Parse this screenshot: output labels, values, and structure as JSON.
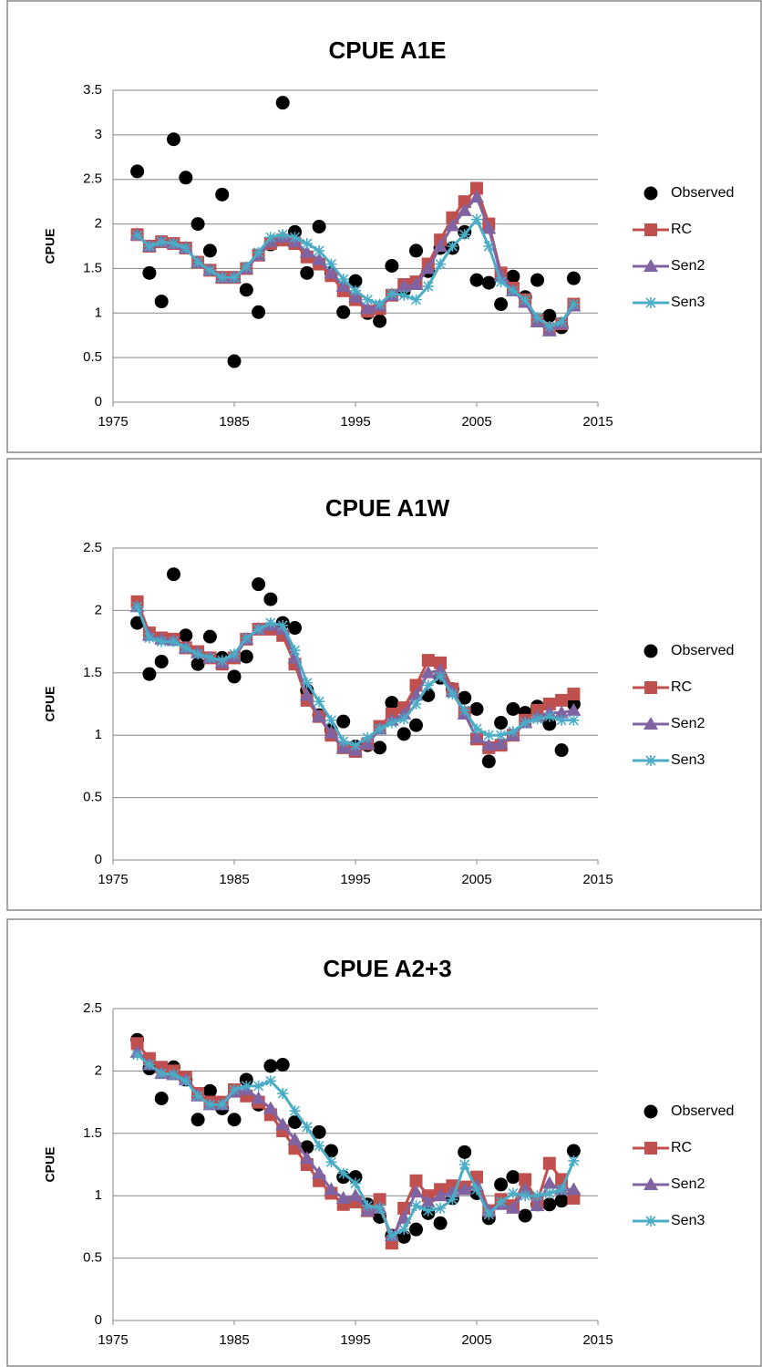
{
  "chart_data": [
    {
      "type": "line",
      "title": "CPUE A1E",
      "ylabel": "CPUE",
      "x": [
        1977,
        1978,
        1979,
        1980,
        1981,
        1982,
        1983,
        1984,
        1985,
        1986,
        1987,
        1988,
        1989,
        1990,
        1991,
        1992,
        1993,
        1994,
        1995,
        1996,
        1997,
        1998,
        1999,
        2000,
        2001,
        2002,
        2003,
        2004,
        2005,
        2006,
        2007,
        2008,
        2009,
        2010,
        2011,
        2012,
        2013
      ],
      "xlim": [
        1975,
        2015
      ],
      "xticks": [
        1975,
        1985,
        1995,
        2005,
        2015
      ],
      "ylim": [
        0,
        3.5
      ],
      "yticks": [
        0,
        0.5,
        1,
        1.5,
        2,
        2.5,
        3,
        3.5
      ],
      "grid": true,
      "legend": "right",
      "series": [
        {
          "name": "Observed",
          "color": "#000000",
          "marker": "circle",
          "line": false,
          "values": [
            2.59,
            1.45,
            1.13,
            2.95,
            2.52,
            2.0,
            1.7,
            2.33,
            0.46,
            1.26,
            1.01,
            1.77,
            3.36,
            1.91,
            1.45,
            1.97,
            1.45,
            1.01,
            1.36,
            1.0,
            0.91,
            1.53,
            1.25,
            1.7,
            1.47,
            1.73,
            1.73,
            1.91,
            1.37,
            1.34,
            1.1,
            1.41,
            1.18,
            1.37,
            0.97,
            0.84,
            1.39
          ]
        },
        {
          "name": "RC",
          "color": "#c0504d",
          "marker": "square",
          "line": true,
          "values": [
            1.88,
            1.75,
            1.8,
            1.78,
            1.73,
            1.57,
            1.48,
            1.4,
            1.4,
            1.5,
            1.65,
            1.78,
            1.82,
            1.78,
            1.63,
            1.55,
            1.42,
            1.25,
            1.15,
            1.02,
            1.05,
            1.2,
            1.32,
            1.35,
            1.55,
            1.82,
            2.07,
            2.25,
            2.4,
            2.0,
            1.45,
            1.28,
            1.15,
            0.92,
            0.82,
            0.88,
            1.1
          ]
        },
        {
          "name": "Sen2",
          "color": "#8064a2",
          "marker": "triangle",
          "line": true,
          "values": [
            1.88,
            1.75,
            1.8,
            1.78,
            1.73,
            1.57,
            1.48,
            1.4,
            1.4,
            1.5,
            1.65,
            1.8,
            1.85,
            1.8,
            1.68,
            1.6,
            1.45,
            1.3,
            1.18,
            1.05,
            1.08,
            1.2,
            1.3,
            1.32,
            1.5,
            1.75,
            1.98,
            2.15,
            2.3,
            1.95,
            1.42,
            1.25,
            1.12,
            0.9,
            0.8,
            0.88,
            1.08
          ]
        },
        {
          "name": "Sen3",
          "color": "#4bacc6",
          "marker": "asterisk",
          "line": true,
          "values": [
            1.87,
            1.75,
            1.8,
            1.78,
            1.73,
            1.57,
            1.48,
            1.4,
            1.4,
            1.52,
            1.68,
            1.85,
            1.88,
            1.85,
            1.78,
            1.7,
            1.55,
            1.38,
            1.25,
            1.15,
            1.1,
            1.22,
            1.2,
            1.15,
            1.3,
            1.55,
            1.75,
            1.88,
            2.05,
            1.75,
            1.35,
            1.25,
            1.15,
            0.95,
            0.85,
            0.9,
            1.1
          ]
        }
      ]
    },
    {
      "type": "line",
      "title": "CPUE A1W",
      "ylabel": "CPUE",
      "x": [
        1977,
        1978,
        1979,
        1980,
        1981,
        1982,
        1983,
        1984,
        1985,
        1986,
        1987,
        1988,
        1989,
        1990,
        1991,
        1992,
        1993,
        1994,
        1995,
        1996,
        1997,
        1998,
        1999,
        2000,
        2001,
        2002,
        2003,
        2004,
        2005,
        2006,
        2007,
        2008,
        2009,
        2010,
        2011,
        2012,
        2013
      ],
      "xlim": [
        1975,
        2015
      ],
      "xticks": [
        1975,
        1985,
        1995,
        2005,
        2015
      ],
      "ylim": [
        0,
        2.5
      ],
      "yticks": [
        0,
        0.5,
        1,
        1.5,
        2,
        2.5
      ],
      "grid": true,
      "legend": "right",
      "series": [
        {
          "name": "Observed",
          "color": "#000000",
          "marker": "circle",
          "line": false,
          "values": [
            1.9,
            1.49,
            1.59,
            2.29,
            1.8,
            1.57,
            1.79,
            1.62,
            1.47,
            1.63,
            2.21,
            2.09,
            1.9,
            1.86,
            1.36,
            1.16,
            1.04,
            1.11,
            0.91,
            0.92,
            0.9,
            1.26,
            1.01,
            1.08,
            1.32,
            1.46,
            1.37,
            1.3,
            1.21,
            0.79,
            1.1,
            1.21,
            1.18,
            1.23,
            1.09,
            0.88,
            1.25
          ]
        },
        {
          "name": "RC",
          "color": "#c0504d",
          "marker": "square",
          "line": true,
          "values": [
            2.07,
            1.82,
            1.78,
            1.77,
            1.7,
            1.67,
            1.62,
            1.57,
            1.62,
            1.77,
            1.85,
            1.85,
            1.8,
            1.57,
            1.28,
            1.15,
            1.0,
            0.9,
            0.87,
            0.93,
            1.07,
            1.17,
            1.22,
            1.4,
            1.6,
            1.58,
            1.37,
            1.18,
            0.97,
            0.9,
            0.92,
            1.0,
            1.12,
            1.2,
            1.25,
            1.28,
            1.33
          ]
        },
        {
          "name": "Sen2",
          "color": "#8064a2",
          "marker": "triangle",
          "line": true,
          "values": [
            2.03,
            1.8,
            1.77,
            1.76,
            1.7,
            1.66,
            1.62,
            1.58,
            1.63,
            1.77,
            1.85,
            1.88,
            1.85,
            1.62,
            1.32,
            1.15,
            1.02,
            0.9,
            0.88,
            0.93,
            1.05,
            1.12,
            1.17,
            1.32,
            1.5,
            1.52,
            1.35,
            1.17,
            0.98,
            0.92,
            0.93,
            1.0,
            1.1,
            1.15,
            1.18,
            1.18,
            1.2
          ]
        },
        {
          "name": "Sen3",
          "color": "#4bacc6",
          "marker": "asterisk",
          "line": true,
          "values": [
            2.03,
            1.78,
            1.75,
            1.75,
            1.7,
            1.65,
            1.62,
            1.6,
            1.65,
            1.78,
            1.85,
            1.9,
            1.88,
            1.68,
            1.42,
            1.27,
            1.12,
            0.95,
            0.92,
            0.98,
            1.05,
            1.1,
            1.13,
            1.25,
            1.4,
            1.47,
            1.33,
            1.2,
            1.05,
            1.0,
            1.0,
            1.03,
            1.1,
            1.13,
            1.15,
            1.12,
            1.12
          ]
        }
      ]
    },
    {
      "type": "line",
      "title": "CPUE A2+3",
      "ylabel": "CPUE",
      "x": [
        1977,
        1978,
        1979,
        1980,
        1981,
        1982,
        1983,
        1984,
        1985,
        1986,
        1987,
        1988,
        1989,
        1990,
        1991,
        1992,
        1993,
        1994,
        1995,
        1996,
        1997,
        1998,
        1999,
        2000,
        2001,
        2002,
        2003,
        2004,
        2005,
        2006,
        2007,
        2008,
        2009,
        2010,
        2011,
        2012,
        2013
      ],
      "xlim": [
        1975,
        2015
      ],
      "xticks": [
        1975,
        1985,
        1995,
        2005,
        2015
      ],
      "ylim": [
        0,
        2.5
      ],
      "yticks": [
        0,
        0.5,
        1,
        1.5,
        2,
        2.5
      ],
      "grid": true,
      "legend": "right",
      "series": [
        {
          "name": "Observed",
          "color": "#000000",
          "marker": "circle",
          "line": false,
          "values": [
            2.25,
            2.02,
            1.78,
            2.03,
            1.93,
            1.61,
            1.84,
            1.7,
            1.61,
            1.93,
            1.73,
            2.04,
            2.05,
            1.59,
            1.39,
            1.51,
            1.36,
            1.15,
            1.15,
            0.93,
            0.83,
            0.68,
            0.67,
            0.73,
            0.86,
            0.78,
            0.98,
            1.35,
            1.02,
            0.82,
            1.09,
            1.15,
            0.84,
            0.93,
            0.93,
            0.96,
            1.36
          ]
        },
        {
          "name": "RC",
          "color": "#c0504d",
          "marker": "square",
          "line": true,
          "values": [
            2.22,
            2.1,
            2.03,
            2.0,
            1.95,
            1.82,
            1.75,
            1.75,
            1.85,
            1.8,
            1.75,
            1.65,
            1.52,
            1.38,
            1.25,
            1.12,
            1.02,
            0.93,
            0.95,
            0.88,
            0.97,
            0.62,
            0.9,
            1.12,
            1.0,
            1.05,
            1.08,
            1.07,
            1.15,
            0.88,
            0.97,
            0.92,
            1.13,
            0.95,
            1.26,
            1.13,
            0.98
          ]
        },
        {
          "name": "Sen2",
          "color": "#8064a2",
          "marker": "triangle",
          "line": true,
          "values": [
            2.15,
            2.05,
            1.98,
            1.97,
            1.93,
            1.8,
            1.73,
            1.73,
            1.83,
            1.85,
            1.78,
            1.7,
            1.57,
            1.45,
            1.3,
            1.18,
            1.05,
            0.98,
            1.0,
            0.88,
            0.9,
            0.68,
            0.82,
            1.03,
            0.95,
            1.0,
            1.03,
            1.05,
            1.08,
            0.88,
            0.93,
            0.9,
            1.05,
            0.92,
            1.1,
            1.05,
            1.05
          ]
        },
        {
          "name": "Sen3",
          "color": "#4bacc6",
          "marker": "asterisk",
          "line": true,
          "values": [
            2.13,
            2.05,
            1.98,
            1.97,
            1.92,
            1.8,
            1.73,
            1.73,
            1.85,
            1.88,
            1.88,
            1.92,
            1.82,
            1.68,
            1.55,
            1.4,
            1.27,
            1.18,
            1.1,
            0.92,
            0.9,
            0.68,
            0.73,
            0.92,
            0.88,
            0.9,
            0.97,
            1.25,
            1.05,
            0.85,
            0.95,
            1.02,
            1.0,
            1.0,
            1.02,
            1.05,
            1.28
          ]
        }
      ]
    }
  ]
}
